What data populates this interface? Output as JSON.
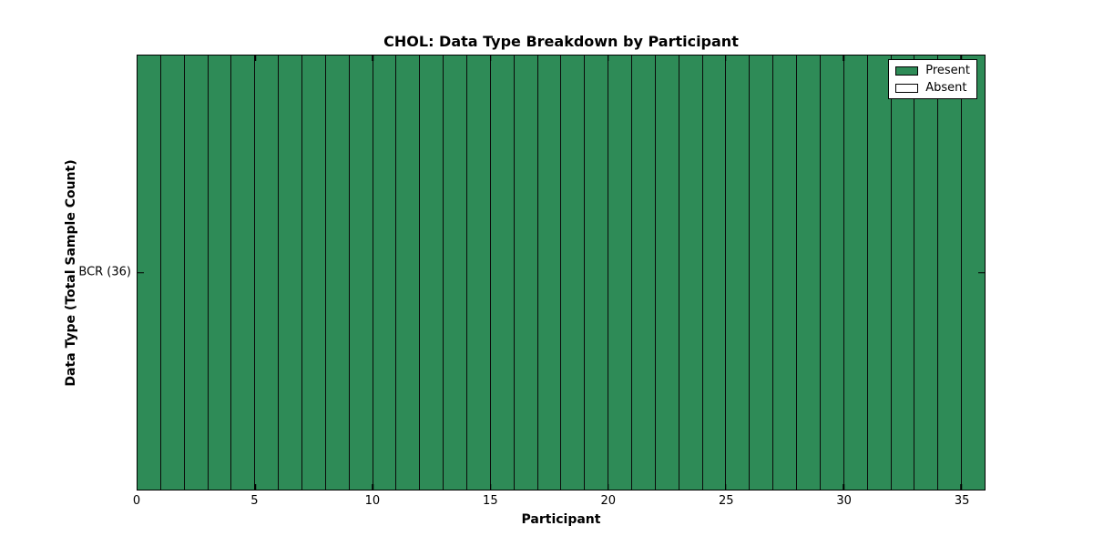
{
  "chart_data": {
    "type": "heatmap",
    "title": "CHOL: Data Type Breakdown by Participant",
    "xlabel": "Participant",
    "ylabel": "Data Type (Total Sample Count)",
    "xlim": [
      0,
      36
    ],
    "x_ticks": [
      0,
      5,
      10,
      15,
      20,
      25,
      30,
      35
    ],
    "n_participants": 36,
    "rows": [
      {
        "label": "BCR (36)",
        "data_type": "BCR",
        "total_sample_count": 36,
        "values": [
          1,
          1,
          1,
          1,
          1,
          1,
          1,
          1,
          1,
          1,
          1,
          1,
          1,
          1,
          1,
          1,
          1,
          1,
          1,
          1,
          1,
          1,
          1,
          1,
          1,
          1,
          1,
          1,
          1,
          1,
          1,
          1,
          1,
          1,
          1,
          1
        ]
      }
    ],
    "legend": {
      "position": "upper right",
      "entries": [
        {
          "label": "Present",
          "color": "#2E8B57"
        },
        {
          "label": "Absent",
          "color": "#FFFFFF"
        }
      ]
    },
    "colors": {
      "present": "#2E8B57",
      "absent": "#FFFFFF",
      "edge": "#000000",
      "background": "#FFFFFF"
    },
    "grid": false
  }
}
